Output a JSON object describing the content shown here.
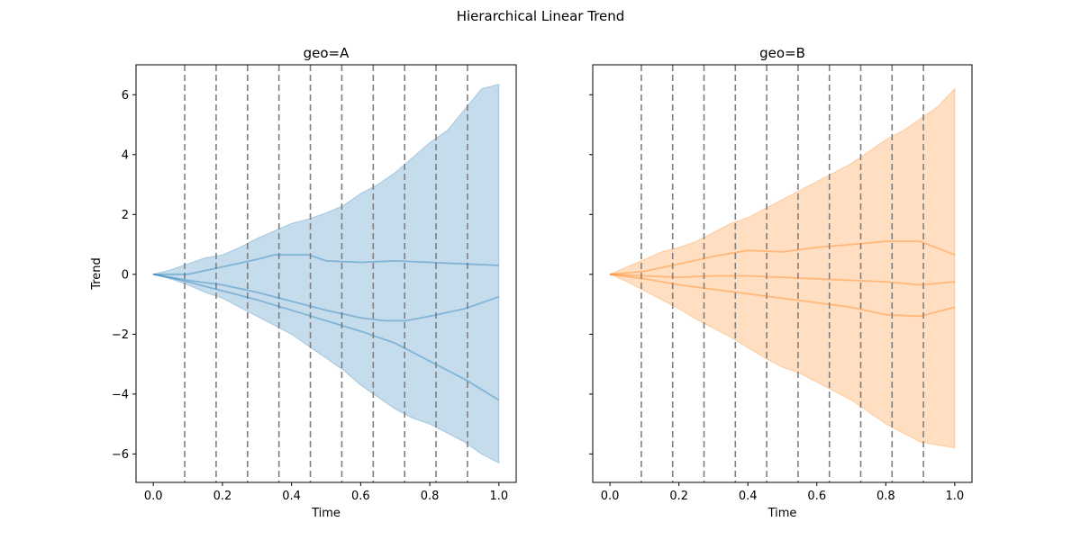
{
  "title": "Hierarchical Linear Trend",
  "chart_data": [
    {
      "type": "line",
      "title": "geo=A",
      "xlabel": "Time",
      "ylabel": "Trend",
      "xlim": [
        -0.05,
        1.05
      ],
      "ylim": [
        -6.95,
        7.0
      ],
      "xticks": [
        0.0,
        0.2,
        0.4,
        0.6,
        0.8,
        1.0
      ],
      "xtick_labels": [
        "0.0",
        "0.2",
        "0.4",
        "0.6",
        "0.8",
        "1.0"
      ],
      "yticks": [
        -6,
        -4,
        -2,
        0,
        2,
        4,
        6
      ],
      "ytick_labels": [
        "−6",
        "−4",
        "−2",
        "0",
        "2",
        "4",
        "6"
      ],
      "color": "#1f77b4",
      "changepoints": [
        0.0909,
        0.1818,
        0.2727,
        0.3636,
        0.4545,
        0.5455,
        0.6364,
        0.7273,
        0.8182,
        0.9091
      ],
      "band": {
        "x": [
          0.0,
          0.05,
          0.1,
          0.15,
          0.2,
          0.25,
          0.3,
          0.35,
          0.4,
          0.45,
          0.5,
          0.55,
          0.6,
          0.65,
          0.7,
          0.75,
          0.8,
          0.85,
          0.9,
          0.95,
          1.0
        ],
        "upper": [
          0.0,
          0.15,
          0.35,
          0.55,
          0.65,
          0.9,
          1.2,
          1.45,
          1.7,
          1.85,
          2.05,
          2.3,
          2.7,
          3.0,
          3.4,
          3.9,
          4.4,
          4.8,
          5.5,
          6.2,
          6.35
        ],
        "lower": [
          0.0,
          -0.15,
          -0.35,
          -0.6,
          -0.8,
          -1.1,
          -1.4,
          -1.7,
          -2.0,
          -2.4,
          -2.8,
          -3.2,
          -3.7,
          -4.1,
          -4.5,
          -4.8,
          -5.0,
          -5.3,
          -5.6,
          -6.0,
          -6.3
        ]
      },
      "series": [
        {
          "x": [
            0.0,
            0.1,
            0.2,
            0.3,
            0.35,
            0.45,
            0.5,
            0.6,
            0.7,
            0.8,
            0.9,
            1.0
          ],
          "values": [
            0.0,
            0.0,
            0.25,
            0.5,
            0.65,
            0.65,
            0.45,
            0.4,
            0.45,
            0.4,
            0.35,
            0.3
          ]
        },
        {
          "x": [
            0.0,
            0.1,
            0.2,
            0.3,
            0.4,
            0.5,
            0.6,
            0.67,
            0.73,
            0.8,
            0.9,
            1.0
          ],
          "values": [
            0.0,
            -0.2,
            -0.35,
            -0.6,
            -0.9,
            -1.2,
            -1.45,
            -1.55,
            -1.55,
            -1.4,
            -1.15,
            -0.75
          ]
        },
        {
          "x": [
            0.0,
            0.1,
            0.2,
            0.3,
            0.4,
            0.5,
            0.6,
            0.7,
            0.8,
            0.9,
            1.0
          ],
          "values": [
            0.0,
            -0.25,
            -0.55,
            -0.85,
            -1.2,
            -1.55,
            -1.9,
            -2.3,
            -2.9,
            -3.5,
            -4.2
          ]
        }
      ]
    },
    {
      "type": "line",
      "title": "geo=B",
      "xlabel": "Time",
      "xlim": [
        -0.05,
        1.05
      ],
      "ylim": [
        -6.95,
        7.0
      ],
      "xticks": [
        0.0,
        0.2,
        0.4,
        0.6,
        0.8,
        1.0
      ],
      "xtick_labels": [
        "0.0",
        "0.2",
        "0.4",
        "0.6",
        "0.8",
        "1.0"
      ],
      "color": "#ff7f0e",
      "changepoints": [
        0.0909,
        0.1818,
        0.2727,
        0.3636,
        0.4545,
        0.5455,
        0.6364,
        0.7273,
        0.8182,
        0.9091
      ],
      "band": {
        "x": [
          0.0,
          0.05,
          0.1,
          0.15,
          0.2,
          0.25,
          0.3,
          0.35,
          0.4,
          0.45,
          0.5,
          0.55,
          0.6,
          0.65,
          0.7,
          0.75,
          0.8,
          0.85,
          0.9,
          0.95,
          1.0
        ],
        "upper": [
          0.0,
          0.25,
          0.5,
          0.75,
          0.9,
          1.1,
          1.4,
          1.7,
          1.9,
          2.2,
          2.5,
          2.8,
          3.1,
          3.4,
          3.7,
          4.1,
          4.5,
          4.8,
          5.2,
          5.6,
          6.2
        ],
        "lower": [
          0.0,
          -0.25,
          -0.55,
          -0.85,
          -1.15,
          -1.5,
          -1.8,
          -2.1,
          -2.45,
          -2.8,
          -3.1,
          -3.3,
          -3.6,
          -3.9,
          -4.2,
          -4.6,
          -5.0,
          -5.3,
          -5.6,
          -5.7,
          -5.8
        ]
      },
      "series": [
        {
          "x": [
            0.0,
            0.1,
            0.2,
            0.3,
            0.4,
            0.5,
            0.6,
            0.7,
            0.8,
            0.9,
            1.0
          ],
          "values": [
            0.0,
            0.1,
            0.35,
            0.6,
            0.8,
            0.75,
            0.9,
            1.0,
            1.1,
            1.1,
            0.65
          ]
        },
        {
          "x": [
            0.0,
            0.1,
            0.2,
            0.3,
            0.4,
            0.5,
            0.6,
            0.7,
            0.8,
            0.9,
            1.0
          ],
          "values": [
            0.0,
            -0.05,
            -0.1,
            -0.05,
            -0.05,
            -0.1,
            -0.15,
            -0.2,
            -0.25,
            -0.35,
            -0.25
          ]
        },
        {
          "x": [
            0.0,
            0.1,
            0.2,
            0.3,
            0.4,
            0.5,
            0.6,
            0.7,
            0.8,
            0.9,
            1.0
          ],
          "values": [
            0.0,
            -0.15,
            -0.35,
            -0.5,
            -0.65,
            -0.8,
            -0.95,
            -1.1,
            -1.35,
            -1.4,
            -1.1
          ]
        }
      ]
    }
  ]
}
